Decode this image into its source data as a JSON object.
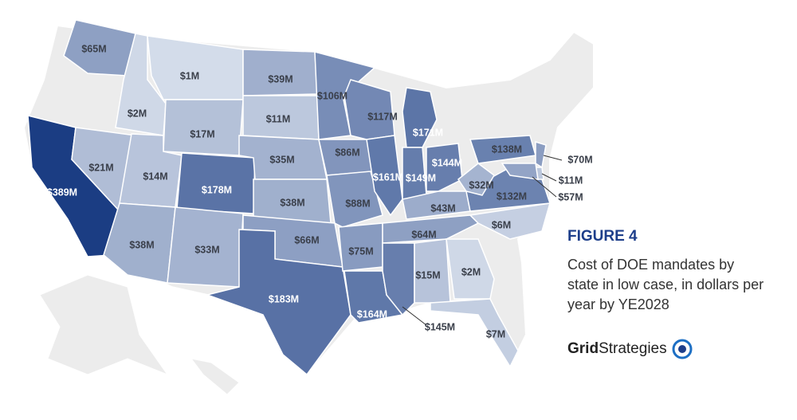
{
  "chart_data": {
    "type": "choropleth",
    "title": "FIGURE 4",
    "subtitle": "Cost of DOE mandates by state in low case, in dollars per year by YE2028",
    "logo": [
      "Grid",
      "Strategies"
    ],
    "colors": [
      "#dde4ef",
      "#1b3d83"
    ],
    "values": [
      65,
      389,
      2,
      1,
      17,
      21,
      14,
      178,
      38,
      33,
      39,
      11,
      35,
      38,
      66,
      183,
      106,
      86,
      88,
      75,
      164,
      117,
      161,
      171,
      149,
      144,
      43,
      64,
      145,
      15,
      2,
      7,
      6,
      132,
      32,
      138,
      70,
      11,
      57
    ],
    "value_labels": [
      "$65M",
      "$389M",
      "$2M",
      "$1M",
      "$17M",
      "$21M",
      "$14M",
      "$178M",
      "$38M",
      "$33M",
      "$39M",
      "$11M",
      "$35M",
      "$38M",
      "$66M",
      "$183M",
      "$106M",
      "$86M",
      "$88M",
      "$75M",
      "$164M",
      "$117M",
      "$161M",
      "$171M",
      "$149M",
      "$144M",
      "$43M",
      "$64M",
      "$145M",
      "$15M",
      "$2M",
      "$7M",
      "$6M",
      "$132M",
      "$32M",
      "$138M",
      "$70M",
      "$11M",
      "$57M"
    ]
  }
}
